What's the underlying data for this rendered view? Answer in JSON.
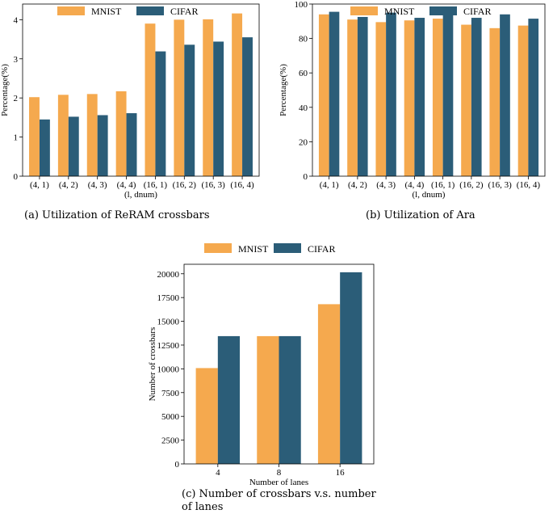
{
  "colors": {
    "mnist": "#F5A94E",
    "cifar": "#2B5D78"
  },
  "legend": {
    "mnist": "MNIST",
    "cifar": "CIFAR"
  },
  "chart_data": [
    {
      "id": "a",
      "type": "bar",
      "categories": [
        "(4, 1)",
        "(4, 2)",
        "(4, 3)",
        "(4, 4)",
        "(16, 1)",
        "(16, 2)",
        "(16, 3)",
        "(16, 4)"
      ],
      "series": [
        {
          "name": "MNIST",
          "values": [
            2.02,
            2.08,
            2.1,
            2.17,
            3.9,
            4.0,
            4.01,
            4.16
          ]
        },
        {
          "name": "CIFAR",
          "values": [
            1.45,
            1.52,
            1.56,
            1.61,
            3.19,
            3.36,
            3.44,
            3.55
          ]
        }
      ],
      "xlabel": "(l, dnum)",
      "ylabel": "Percentage(%)",
      "ylim": [
        0,
        4.4
      ],
      "yticks": [
        0,
        1,
        2,
        3,
        4
      ],
      "legend_position": "top",
      "caption": "(a) Utilization of ReRAM crossbars"
    },
    {
      "id": "b",
      "type": "bar",
      "categories": [
        "(4, 1)",
        "(4, 2)",
        "(4, 3)",
        "(4, 4)",
        "(16, 1)",
        "(16, 2)",
        "(16, 3)",
        "(16, 4)"
      ],
      "series": [
        {
          "name": "MNIST",
          "values": [
            94,
            91,
            89.5,
            90.5,
            91.5,
            88,
            86,
            87.5
          ]
        },
        {
          "name": "CIFAR",
          "values": [
            95.5,
            92.5,
            95,
            92,
            95,
            92,
            94,
            91.5
          ]
        }
      ],
      "xlabel": "(l, dnum)",
      "ylabel": "Percentage(%)",
      "ylim": [
        0,
        100
      ],
      "yticks": [
        0,
        20,
        40,
        60,
        80,
        100
      ],
      "legend_position": "top",
      "caption": "(b) Utilization of Ara"
    },
    {
      "id": "c",
      "type": "bar",
      "categories": [
        "4",
        "8",
        "16"
      ],
      "series": [
        {
          "name": "MNIST",
          "values": [
            10080,
            13440,
            16800
          ]
        },
        {
          "name": "CIFAR",
          "values": [
            13440,
            13440,
            20160
          ]
        }
      ],
      "xlabel": "Number of lanes",
      "ylabel": "Number of crossbars",
      "ylim": [
        0,
        21000
      ],
      "yticks": [
        0,
        2500,
        5000,
        7500,
        10000,
        12500,
        15000,
        17500,
        20000
      ],
      "legend_position": "above",
      "caption": "(c) Number of crossbars v.s. number of lanes"
    }
  ]
}
